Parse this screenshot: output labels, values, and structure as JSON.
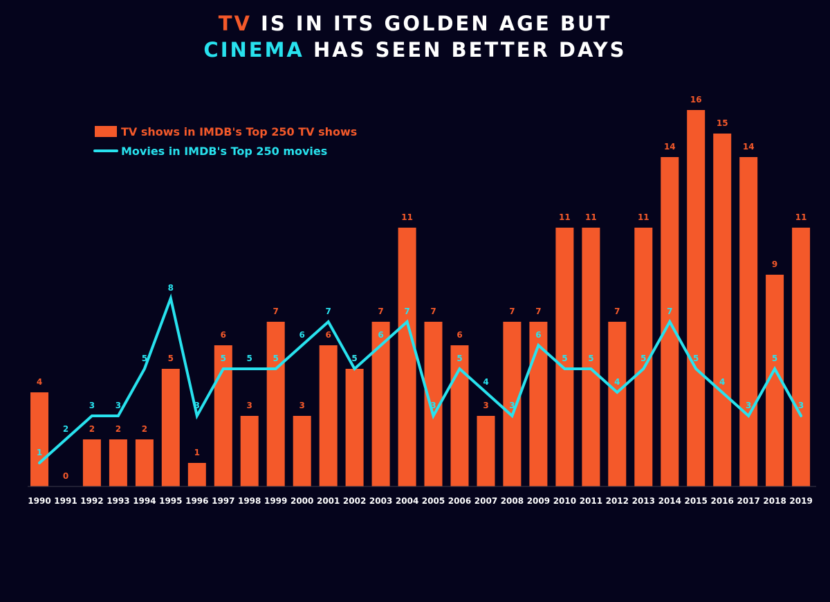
{
  "title": {
    "line1": {
      "highlight": "TV",
      "rest": " IS IN ITS GOLDEN AGE BUT"
    },
    "line2": {
      "highlight": "CINEMA",
      "rest": " HAS SEEN BETTER DAYS"
    }
  },
  "colors": {
    "background": "#05041c",
    "tv": "#f4592a",
    "movies": "#28e2ee",
    "text": "#ffffff"
  },
  "chart_data": {
    "type": "bar",
    "categories": [
      "1990",
      "1991",
      "1992",
      "1993",
      "1994",
      "1995",
      "1996",
      "1997",
      "1998",
      "1999",
      "2000",
      "2001",
      "2002",
      "2003",
      "2004",
      "2005",
      "2006",
      "2007",
      "2008",
      "2009",
      "2010",
      "2011",
      "2012",
      "2013",
      "2014",
      "2015",
      "2016",
      "2017",
      "2018",
      "2019"
    ],
    "series": [
      {
        "name": "TV shows in IMDB's Top 250 TV shows",
        "type": "bar",
        "values": [
          4,
          0,
          2,
          2,
          2,
          5,
          1,
          6,
          3,
          7,
          3,
          6,
          5,
          7,
          11,
          7,
          6,
          3,
          7,
          7,
          11,
          11,
          7,
          11,
          14,
          16,
          15,
          14,
          9,
          11
        ]
      },
      {
        "name": "Movies in IMDB's Top 250 movies",
        "type": "line",
        "values": [
          1,
          2,
          3,
          3,
          5,
          8,
          3,
          5,
          5,
          5,
          6,
          7,
          5,
          6,
          7,
          3,
          5,
          4,
          3,
          6,
          5,
          5,
          4,
          5,
          7,
          5,
          4,
          3,
          5,
          3
        ]
      }
    ],
    "ylim": [
      0,
      16
    ],
    "grid": false,
    "legend_position": "top-left"
  }
}
